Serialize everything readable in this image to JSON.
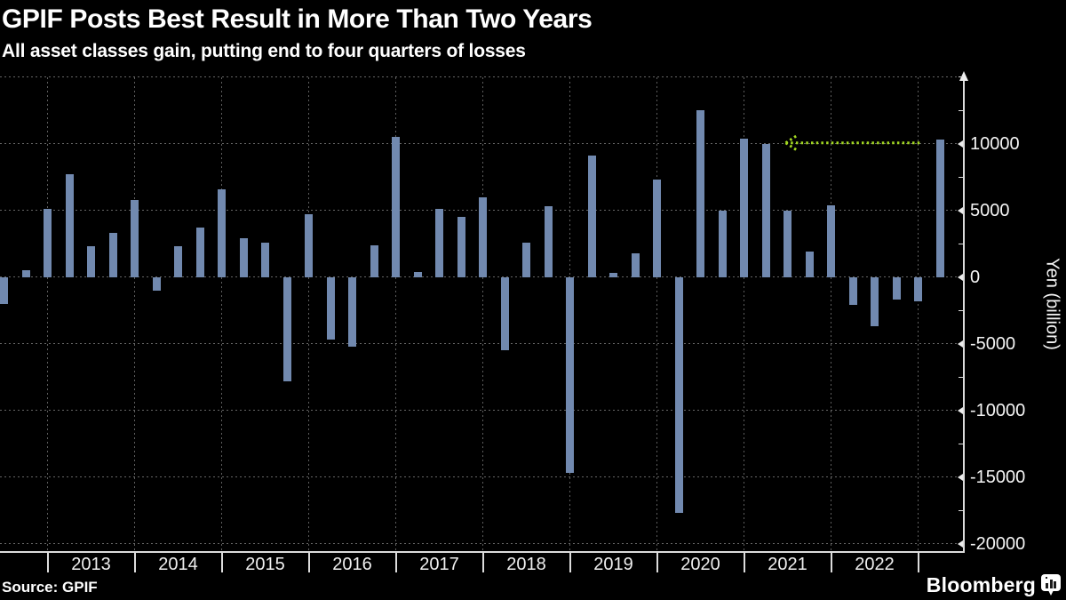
{
  "header": {
    "title": "GPIF Posts Best Result in More Than Two Years",
    "subtitle": "All asset classes gain, putting end to four quarters of losses"
  },
  "source": {
    "label": "Source: GPIF"
  },
  "branding": {
    "wordmark": "Bloomberg",
    "logo_icon": "bloomberg-chart-bubble-icon"
  },
  "chart_data": {
    "type": "bar",
    "title": "GPIF quarterly investment gains and losses",
    "unit": "billion yen",
    "frequency": "quarterly",
    "quarters": [
      "2012 Q2",
      "2012 Q3",
      "2012 Q4",
      "2013 Q1",
      "2013 Q2",
      "2013 Q3",
      "2013 Q4",
      "2014 Q1",
      "2014 Q2",
      "2014 Q3",
      "2014 Q4",
      "2015 Q1",
      "2015 Q2",
      "2015 Q3",
      "2015 Q4",
      "2016 Q1",
      "2016 Q2",
      "2016 Q3",
      "2016 Q4",
      "2017 Q1",
      "2017 Q2",
      "2017 Q3",
      "2017 Q4",
      "2018 Q1",
      "2018 Q2",
      "2018 Q3",
      "2018 Q4",
      "2019 Q1",
      "2019 Q2",
      "2019 Q3",
      "2019 Q4",
      "2020 Q1",
      "2020 Q2",
      "2020 Q3",
      "2020 Q4",
      "2021 Q1",
      "2021 Q2",
      "2021 Q3",
      "2021 Q4",
      "2022 Q1",
      "2022 Q2",
      "2022 Q3",
      "2022 Q4",
      "2023 Q1"
    ],
    "values": [
      -2000,
      500,
      5100,
      7700,
      2300,
      3300,
      5800,
      -1000,
      2300,
      3700,
      6600,
      2900,
      2600,
      -7800,
      4700,
      -4700,
      -5200,
      2400,
      10500,
      400,
      5100,
      4500,
      6000,
      -5500,
      2600,
      5300,
      -14700,
      9100,
      300,
      1800,
      7300,
      -17700,
      12500,
      5000,
      10400,
      10000,
      5000,
      1900,
      5400,
      -2100,
      -3700,
      -1700,
      -1800,
      10300
    ],
    "x_axis": {
      "year_labels": [
        "2013",
        "2014",
        "2015",
        "2016",
        "2017",
        "2018",
        "2019",
        "2020",
        "2021",
        "2022"
      ]
    },
    "y_axis": {
      "label": "Yen (billion)",
      "tick_values": [
        10000,
        5000,
        0,
        -5000,
        -10000,
        -15000,
        -20000
      ],
      "tick_labels": [
        "10000",
        "5000",
        "0",
        "-5000",
        "-10000",
        "-15000",
        "-20000"
      ],
      "minor_tick_values": [
        15000,
        12500,
        7500,
        2500,
        -2500,
        -7500,
        -12500,
        -17500
      ],
      "gridline_values": [
        15000,
        10000,
        5000,
        0,
        -5000,
        -10000,
        -15000,
        -20000
      ],
      "range": [
        -20600,
        15200
      ]
    },
    "annotation": {
      "style": "dotted-line-with-left-arrow",
      "y_value": 10050,
      "from_quarter": "2023 Q1",
      "points_to_quarter": "2021 Q1",
      "color": "#a3d821"
    },
    "legend": false,
    "grid": true,
    "colors": {
      "bar": "#7189af",
      "grid": "#666666",
      "axis": "#dcdcdc",
      "text": "#ffffff",
      "background": "#000000"
    }
  }
}
